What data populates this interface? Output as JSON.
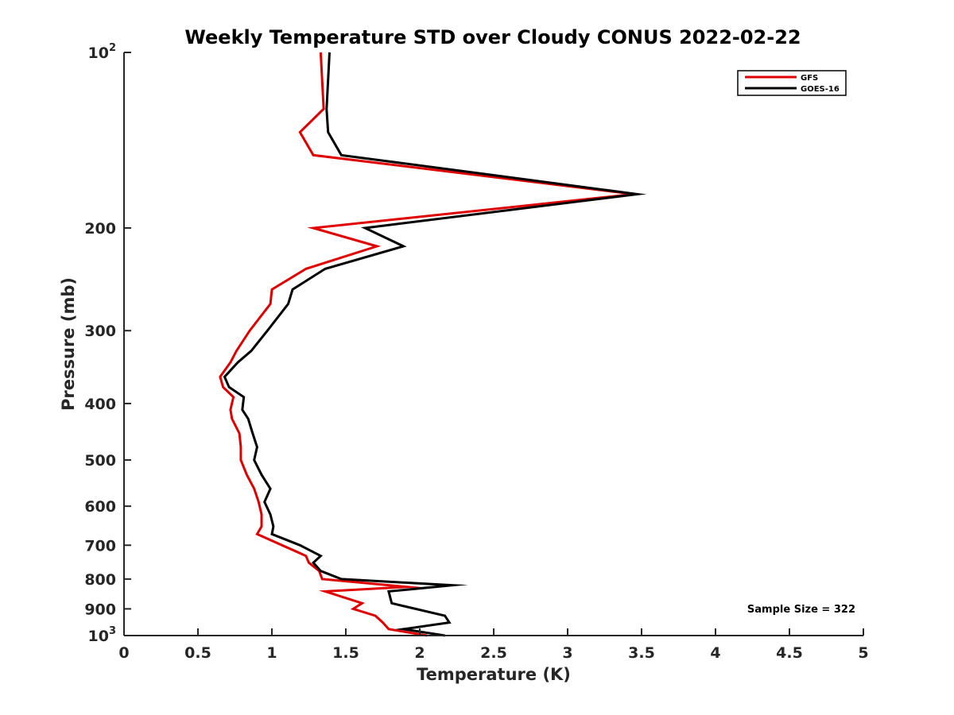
{
  "chart_data": {
    "type": "line",
    "title": "Weekly Temperature STD over Cloudy CONUS 2022-02-22",
    "xlabel": "Temperature (K)",
    "ylabel": "Pressure (mb)",
    "xlim": [
      0,
      5
    ],
    "ylim": [
      1000,
      100
    ],
    "y_scale": "log",
    "y_reversed": true,
    "x_ticks": [
      0,
      0.5,
      1,
      1.5,
      2,
      2.5,
      3,
      3.5,
      4,
      4.5,
      5
    ],
    "x_tick_labels": [
      "0",
      "0.5",
      "1",
      "1.5",
      "2",
      "2.5",
      "3",
      "3.5",
      "4",
      "4.5",
      "5"
    ],
    "y_ticks": [
      100,
      200,
      300,
      400,
      500,
      600,
      700,
      800,
      900,
      1000
    ],
    "y_tick_labels": [
      {
        "base": "10",
        "exp": "2"
      },
      {
        "base": "200",
        "exp": ""
      },
      {
        "base": "300",
        "exp": ""
      },
      {
        "base": "400",
        "exp": ""
      },
      {
        "base": "500",
        "exp": ""
      },
      {
        "base": "600",
        "exp": ""
      },
      {
        "base": "700",
        "exp": ""
      },
      {
        "base": "800",
        "exp": ""
      },
      {
        "base": "900",
        "exp": ""
      },
      {
        "base": "10",
        "exp": "3"
      }
    ],
    "grid": false,
    "legend_position": "top-right",
    "annotation": "Sample Size = 322",
    "series": [
      {
        "name": "GFS",
        "color": "#e00000",
        "points": [
          [
            1.33,
            100
          ],
          [
            1.35,
            125
          ],
          [
            1.19,
            137
          ],
          [
            1.28,
            150
          ],
          [
            3.45,
            175
          ],
          [
            1.28,
            200
          ],
          [
            1.71,
            215
          ],
          [
            1.23,
            235
          ],
          [
            1.0,
            255
          ],
          [
            0.99,
            270
          ],
          [
            0.85,
            300
          ],
          [
            0.76,
            325
          ],
          [
            0.72,
            340
          ],
          [
            0.65,
            360
          ],
          [
            0.67,
            375
          ],
          [
            0.74,
            390
          ],
          [
            0.72,
            410
          ],
          [
            0.73,
            425
          ],
          [
            0.78,
            450
          ],
          [
            0.79,
            475
          ],
          [
            0.79,
            500
          ],
          [
            0.83,
            530
          ],
          [
            0.88,
            560
          ],
          [
            0.91,
            590
          ],
          [
            0.93,
            620
          ],
          [
            0.93,
            650
          ],
          [
            0.9,
            670
          ],
          [
            1.23,
            730
          ],
          [
            1.25,
            750
          ],
          [
            1.32,
            775
          ],
          [
            1.34,
            800
          ],
          [
            1.91,
            825
          ],
          [
            1.36,
            840
          ],
          [
            1.61,
            880
          ],
          [
            1.55,
            900
          ],
          [
            1.7,
            925
          ],
          [
            1.75,
            950
          ],
          [
            1.79,
            975
          ],
          [
            2.05,
            1000
          ]
        ]
      },
      {
        "name": "GOES-16",
        "color": "#000000",
        "points": [
          [
            1.39,
            100
          ],
          [
            1.37,
            125
          ],
          [
            1.38,
            137
          ],
          [
            1.47,
            150
          ],
          [
            3.47,
            175
          ],
          [
            1.63,
            200
          ],
          [
            1.89,
            215
          ],
          [
            1.36,
            235
          ],
          [
            1.14,
            255
          ],
          [
            1.11,
            270
          ],
          [
            0.97,
            300
          ],
          [
            0.86,
            325
          ],
          [
            0.77,
            340
          ],
          [
            0.68,
            360
          ],
          [
            0.71,
            375
          ],
          [
            0.81,
            390
          ],
          [
            0.8,
            410
          ],
          [
            0.84,
            425
          ],
          [
            0.87,
            450
          ],
          [
            0.9,
            475
          ],
          [
            0.88,
            500
          ],
          [
            0.93,
            530
          ],
          [
            0.99,
            560
          ],
          [
            0.95,
            590
          ],
          [
            0.99,
            620
          ],
          [
            1.01,
            650
          ],
          [
            1.0,
            670
          ],
          [
            1.19,
            700
          ],
          [
            1.33,
            730
          ],
          [
            1.28,
            750
          ],
          [
            1.33,
            775
          ],
          [
            1.47,
            800
          ],
          [
            2.22,
            820
          ],
          [
            1.79,
            840
          ],
          [
            1.81,
            880
          ],
          [
            2.17,
            925
          ],
          [
            2.2,
            950
          ],
          [
            1.89,
            975
          ],
          [
            2.17,
            1000
          ]
        ]
      }
    ]
  }
}
